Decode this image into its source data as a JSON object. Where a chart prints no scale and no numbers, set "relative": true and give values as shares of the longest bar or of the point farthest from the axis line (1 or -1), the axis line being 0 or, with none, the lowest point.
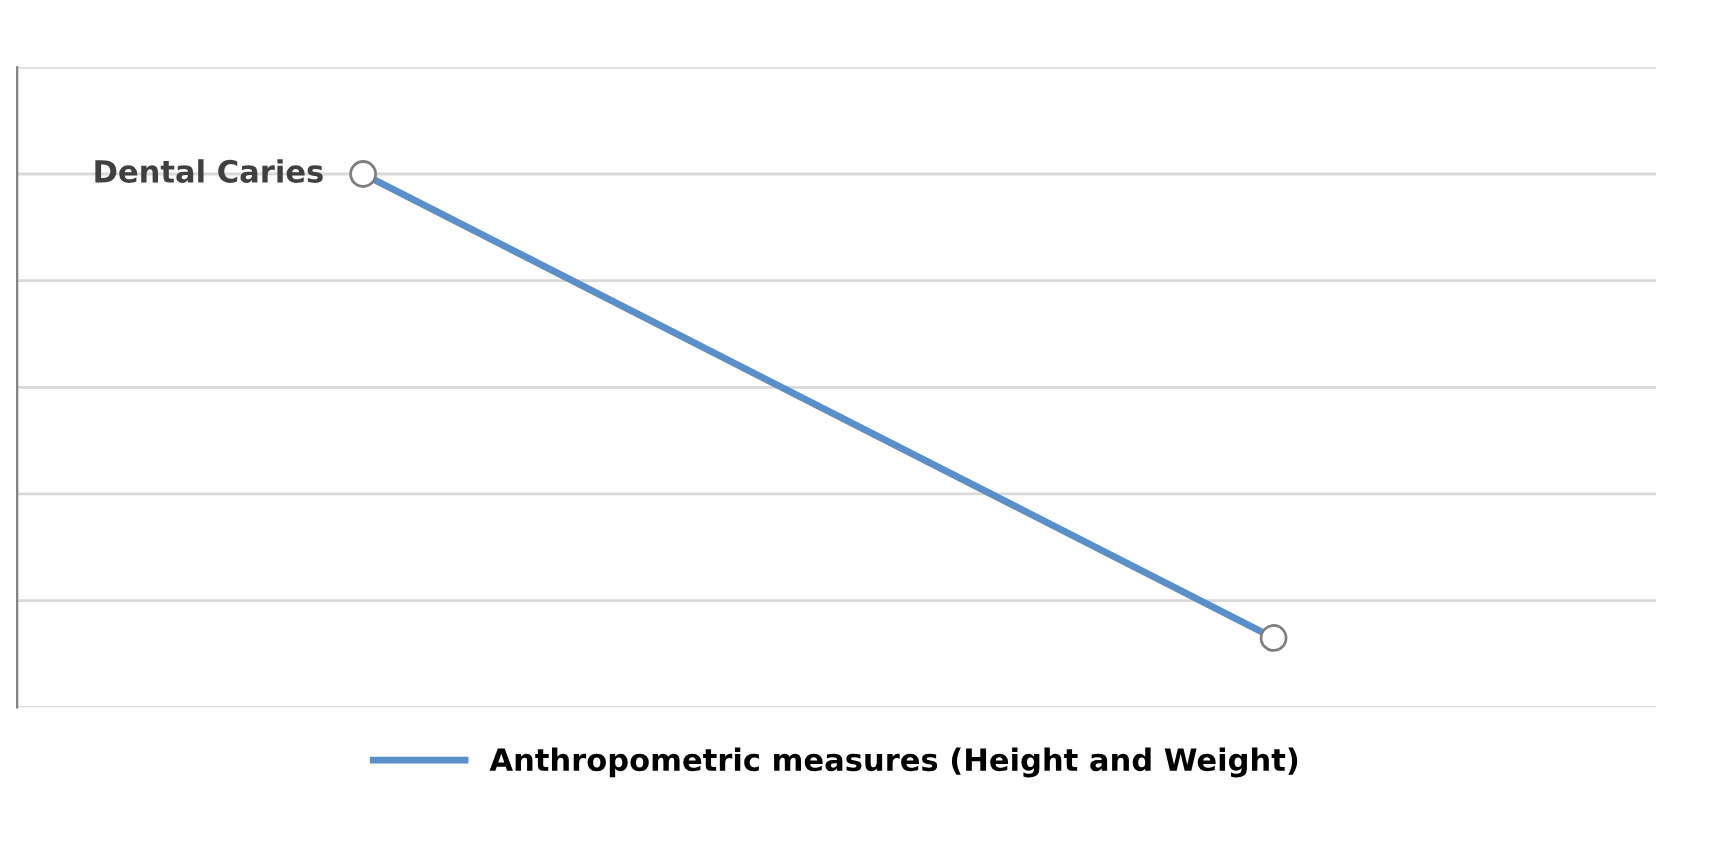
{
  "chart_data": {
    "type": "line",
    "relative": true,
    "categories": [
      null,
      null
    ],
    "series": [
      {
        "name": "Anthropometric measures (Height and Weight)",
        "color": "#5b8fc9",
        "values": [
          1,
          0.13
        ]
      }
    ],
    "annotations": [
      "Dental Caries"
    ],
    "marker": "circle",
    "line_style": "solid",
    "grid": "y",
    "legend": "bottom"
  }
}
